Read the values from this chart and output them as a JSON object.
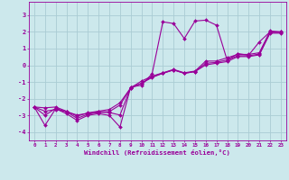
{
  "xlabel": "Windchill (Refroidissement éolien,°C)",
  "bg_color": "#cce8ec",
  "grid_color": "#aaccd4",
  "line_color": "#990099",
  "xlim": [
    -0.5,
    23.5
  ],
  "ylim": [
    -4.5,
    3.8
  ],
  "xticks": [
    0,
    1,
    2,
    3,
    4,
    5,
    6,
    7,
    8,
    9,
    10,
    11,
    12,
    13,
    14,
    15,
    16,
    17,
    18,
    19,
    20,
    21,
    22,
    23
  ],
  "yticks": [
    -4,
    -3,
    -2,
    -1,
    0,
    1,
    2,
    3
  ],
  "x": [
    0,
    1,
    2,
    3,
    4,
    5,
    6,
    7,
    8,
    9,
    10,
    11,
    12,
    13,
    14,
    15,
    16,
    17,
    18,
    19,
    20,
    21,
    22,
    23
  ],
  "series1": [
    -2.5,
    -3.6,
    -2.6,
    -2.9,
    -3.3,
    -3.0,
    -2.9,
    -3.0,
    -3.7,
    -1.3,
    -1.2,
    -0.5,
    2.6,
    2.5,
    1.6,
    2.65,
    2.7,
    2.4,
    0.3,
    0.7,
    0.6,
    1.4,
    2.0,
    2.0
  ],
  "series2": [
    -2.5,
    -2.55,
    -2.5,
    -2.75,
    -3.05,
    -2.85,
    -2.75,
    -2.65,
    -2.25,
    -1.35,
    -0.95,
    -0.65,
    -0.45,
    -0.25,
    -0.45,
    -0.35,
    0.25,
    0.25,
    0.45,
    0.65,
    0.65,
    0.75,
    2.05,
    2.0
  ],
  "series3": [
    -2.5,
    -2.75,
    -2.65,
    -2.78,
    -2.98,
    -2.88,
    -2.78,
    -2.78,
    -2.38,
    -1.38,
    -1.08,
    -0.68,
    -0.48,
    -0.28,
    -0.48,
    -0.38,
    0.02,
    0.12,
    0.22,
    0.52,
    0.52,
    0.62,
    1.92,
    1.92
  ],
  "series4": [
    -2.5,
    -3.0,
    -2.58,
    -2.78,
    -3.18,
    -2.93,
    -2.83,
    -2.83,
    -2.98,
    -1.33,
    -1.08,
    -0.73,
    -0.48,
    -0.28,
    -0.48,
    -0.38,
    0.12,
    0.17,
    0.32,
    0.57,
    0.57,
    0.67,
    1.97,
    1.97
  ],
  "marker": "D",
  "marker_size": 2.0,
  "line_width": 0.8
}
